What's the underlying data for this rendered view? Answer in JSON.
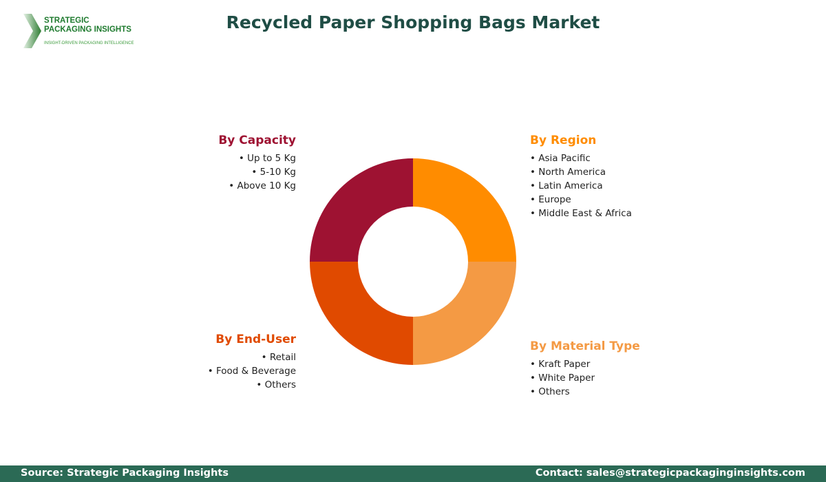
{
  "logo": {
    "line1": "STRATEGIC",
    "line2": "PACKAGING INSIGHTS",
    "tagline": "INSIGHT-DRIVEN PACKAGING INTELLIGENCE"
  },
  "title": "Recycled Paper Shopping Bags Market",
  "chart_data": {
    "type": "pie",
    "style": "donut",
    "categories": [
      "By Region",
      "By Material Type",
      "By End-User",
      "By Capacity"
    ],
    "values": [
      1,
      1,
      1,
      1
    ],
    "colors": [
      "#FF8C00",
      "#F49A44",
      "#E04A00",
      "#9E1232"
    ]
  },
  "segments": {
    "capacity": {
      "title": "By Capacity",
      "color": "#9E1232",
      "items": [
        "Up to 5 Kg",
        "5-10 Kg",
        "Above 10 Kg"
      ]
    },
    "region": {
      "title": "By Region",
      "color": "#FF8C00",
      "items": [
        "Asia Pacific",
        "North America",
        "Latin America",
        "Europe",
        "Middle East & Africa"
      ]
    },
    "enduser": {
      "title": "By End-User",
      "color": "#E04A00",
      "items": [
        "Retail",
        "Food & Beverage",
        "Others"
      ]
    },
    "material": {
      "title": "By Material Type",
      "color": "#F49A44",
      "items": [
        "Kraft Paper",
        "White Paper",
        "Others"
      ]
    }
  },
  "footer": {
    "source": "Source: Strategic Packaging Insights",
    "contact": "Contact: sales@strategicpackaginginsights.com"
  }
}
